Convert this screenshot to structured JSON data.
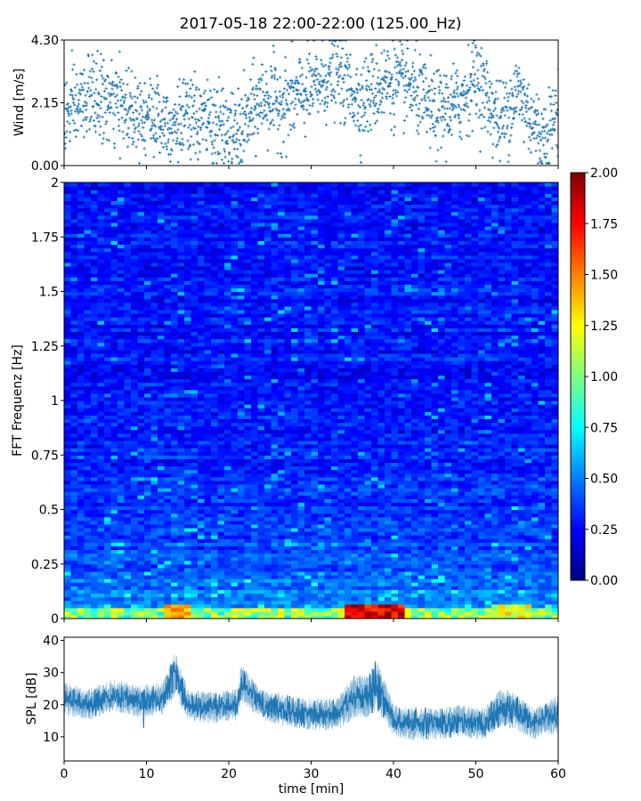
{
  "title": "2017-05-18 22:00-22:00 (125.00_Hz)",
  "colors": {
    "wind_points": "#1f77b4",
    "spl_line": "#1f77b4",
    "colormap": "jet"
  },
  "chart_data": [
    {
      "id": "wind",
      "type": "scatter",
      "title": "",
      "xlabel": "",
      "ylabel": "Wind [m/s]",
      "xlim": [
        0,
        60
      ],
      "ylim": [
        0,
        4.3
      ],
      "y_ticks": [
        0.0,
        2.15,
        4.3
      ],
      "y_tick_labels": [
        "0.00",
        "2.15",
        "4.30"
      ],
      "x_tick_labels_visible": false,
      "marker": "plus",
      "approx_points_count": 1800,
      "key_points_x_min": [
        0,
        3,
        6,
        10,
        13,
        17,
        21,
        24,
        27,
        30,
        33,
        36,
        39,
        42,
        45,
        48,
        50,
        53,
        55,
        58,
        60
      ],
      "key_points_y": [
        1.6,
        2.4,
        2.1,
        1.8,
        1.5,
        1.6,
        1.0,
        2.3,
        2.1,
        2.6,
        3.2,
        2.2,
        2.9,
        2.7,
        1.8,
        2.1,
        3.1,
        1.4,
        2.6,
        0.9,
        1.8
      ]
    },
    {
      "id": "spectrogram",
      "type": "heatmap",
      "title": "",
      "xlabel": "",
      "ylabel": "FFT Frequenz [Hz]",
      "xlim": [
        0,
        60
      ],
      "ylim": [
        0,
        2
      ],
      "y_ticks": [
        0,
        0.25,
        0.5,
        0.75,
        1,
        1.25,
        1.5,
        1.75,
        2
      ],
      "y_tick_labels": [
        "0",
        "0.25",
        "0.5",
        "0.75",
        "1",
        "1.25",
        "1.5",
        "1.75",
        "2"
      ],
      "x_tick_labels_visible": false,
      "colormap": "jet",
      "colorbar": {
        "vmin": 0.0,
        "vmax": 2.0,
        "ticks": [
          0.0,
          0.25,
          0.5,
          0.75,
          1.0,
          1.25,
          1.5,
          1.75,
          2.0
        ],
        "tick_labels": [
          "0.00",
          "0.25",
          "0.50",
          "0.75",
          "1.00",
          "1.25",
          "1.50",
          "1.75",
          "2.00"
        ]
      },
      "typical_value_high_freq": 0.2,
      "typical_value_low_freq": 0.5,
      "hotspots": [
        {
          "x_range": [
            12,
            15
          ],
          "freq_range": [
            0,
            0.06
          ],
          "value": 1.6
        },
        {
          "x_range": [
            34,
            41
          ],
          "freq_range": [
            0,
            0.06
          ],
          "value": 2.0
        },
        {
          "x_range": [
            52,
            57
          ],
          "freq_range": [
            0,
            0.06
          ],
          "value": 1.4
        }
      ]
    },
    {
      "id": "spl",
      "type": "line",
      "title": "",
      "xlabel": "time [min]",
      "ylabel": "SPL [dB]",
      "xlim": [
        0,
        60
      ],
      "ylim": [
        2.5,
        41
      ],
      "x_ticks": [
        0,
        10,
        20,
        30,
        40,
        50,
        60
      ],
      "x_tick_labels": [
        "0",
        "10",
        "20",
        "30",
        "40",
        "50",
        "60"
      ],
      "y_ticks": [
        10,
        20,
        30,
        40
      ],
      "y_tick_labels": [
        "10",
        "20",
        "30",
        "40"
      ],
      "envelope_x": [
        0,
        3,
        6,
        9,
        12,
        13.5,
        15,
        18,
        21,
        21.5,
        24,
        27,
        30,
        33,
        35,
        37,
        38,
        40,
        42,
        45,
        48,
        51,
        53,
        55,
        57,
        60
      ],
      "envelope_mean": [
        22,
        20,
        23,
        21,
        22,
        30,
        20,
        19,
        20,
        27,
        20,
        18,
        17,
        17,
        22,
        23,
        26,
        15,
        14,
        14,
        15,
        14,
        19,
        18,
        14,
        17
      ],
      "envelope_halfwidth": [
        5,
        5,
        5,
        5,
        5,
        7,
        5,
        5,
        5,
        6,
        5,
        5,
        5,
        5,
        7,
        7,
        8,
        5,
        5,
        5,
        5,
        5,
        6,
        6,
        5,
        6
      ]
    }
  ]
}
